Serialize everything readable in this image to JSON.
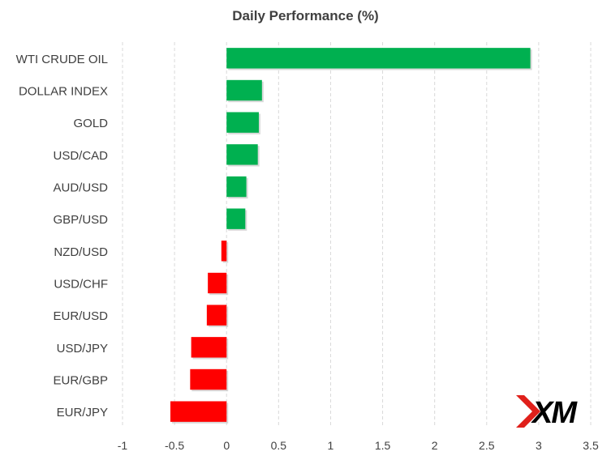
{
  "chart_data": {
    "type": "bar",
    "orientation": "horizontal",
    "title": "Daily Performance (%)",
    "xlabel": "",
    "ylabel": "",
    "categories": [
      "WTI CRUDE OIL",
      "DOLLAR INDEX",
      "GOLD",
      "USD/CAD",
      "AUD/USD",
      "GBP/USD",
      "NZD/USD",
      "USD/CHF",
      "EUR/USD",
      "USD/JPY",
      "EUR/GBP",
      "EUR/JPY"
    ],
    "values": [
      2.92,
      0.34,
      0.31,
      0.3,
      0.19,
      0.18,
      -0.05,
      -0.18,
      -0.19,
      -0.34,
      -0.35,
      -0.54
    ],
    "xlim": [
      -1,
      3.5
    ],
    "xticks": [
      "-1",
      "-0.5",
      "0",
      "0.5",
      "1",
      "1.5",
      "2",
      "2.5",
      "3",
      "3.5"
    ],
    "xtick_values": [
      -1,
      -0.5,
      0,
      0.5,
      1,
      1.5,
      2,
      2.5,
      3,
      3.5
    ],
    "grid": "vertical dashed",
    "legend": "none",
    "colors": {
      "positive": "#00b050",
      "negative": "#ff0000",
      "grid": "#d9d9d9",
      "text": "#404040"
    }
  },
  "logo": {
    "text": "XM",
    "colors": {
      "mark": "#e0201b",
      "text": "#000000"
    }
  }
}
